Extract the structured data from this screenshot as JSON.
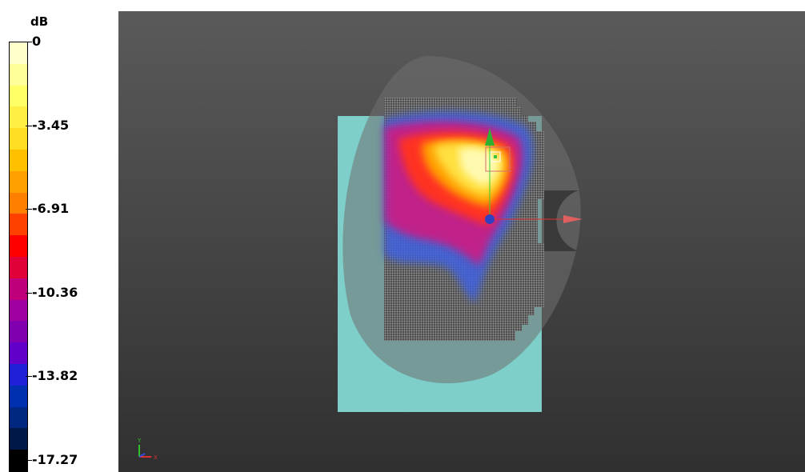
{
  "legend": {
    "unit": "dB",
    "ticks": [
      "0",
      "-3.45",
      "-6.91",
      "-10.36",
      "-13.82",
      "-17.27"
    ],
    "colors": [
      "#ffffcc",
      "#ffff99",
      "#ffff66",
      "#ffee44",
      "#ffdd22",
      "#ffc000",
      "#ffa000",
      "#ff8000",
      "#ff4000",
      "#ff0000",
      "#e0003a",
      "#c0007a",
      "#a000a0",
      "#8000b0",
      "#6000c8",
      "#2020d8",
      "#0030b0",
      "#002880",
      "#001848",
      "#000000"
    ]
  },
  "viewport": {
    "colors": {
      "background_top": "#5a5a5a",
      "background_bottom": "#303030",
      "phantom": "#7ececa",
      "head_shell": "#6f6f6f"
    },
    "axis_triad": {
      "y_label": "Y",
      "x_label": "X"
    }
  }
}
